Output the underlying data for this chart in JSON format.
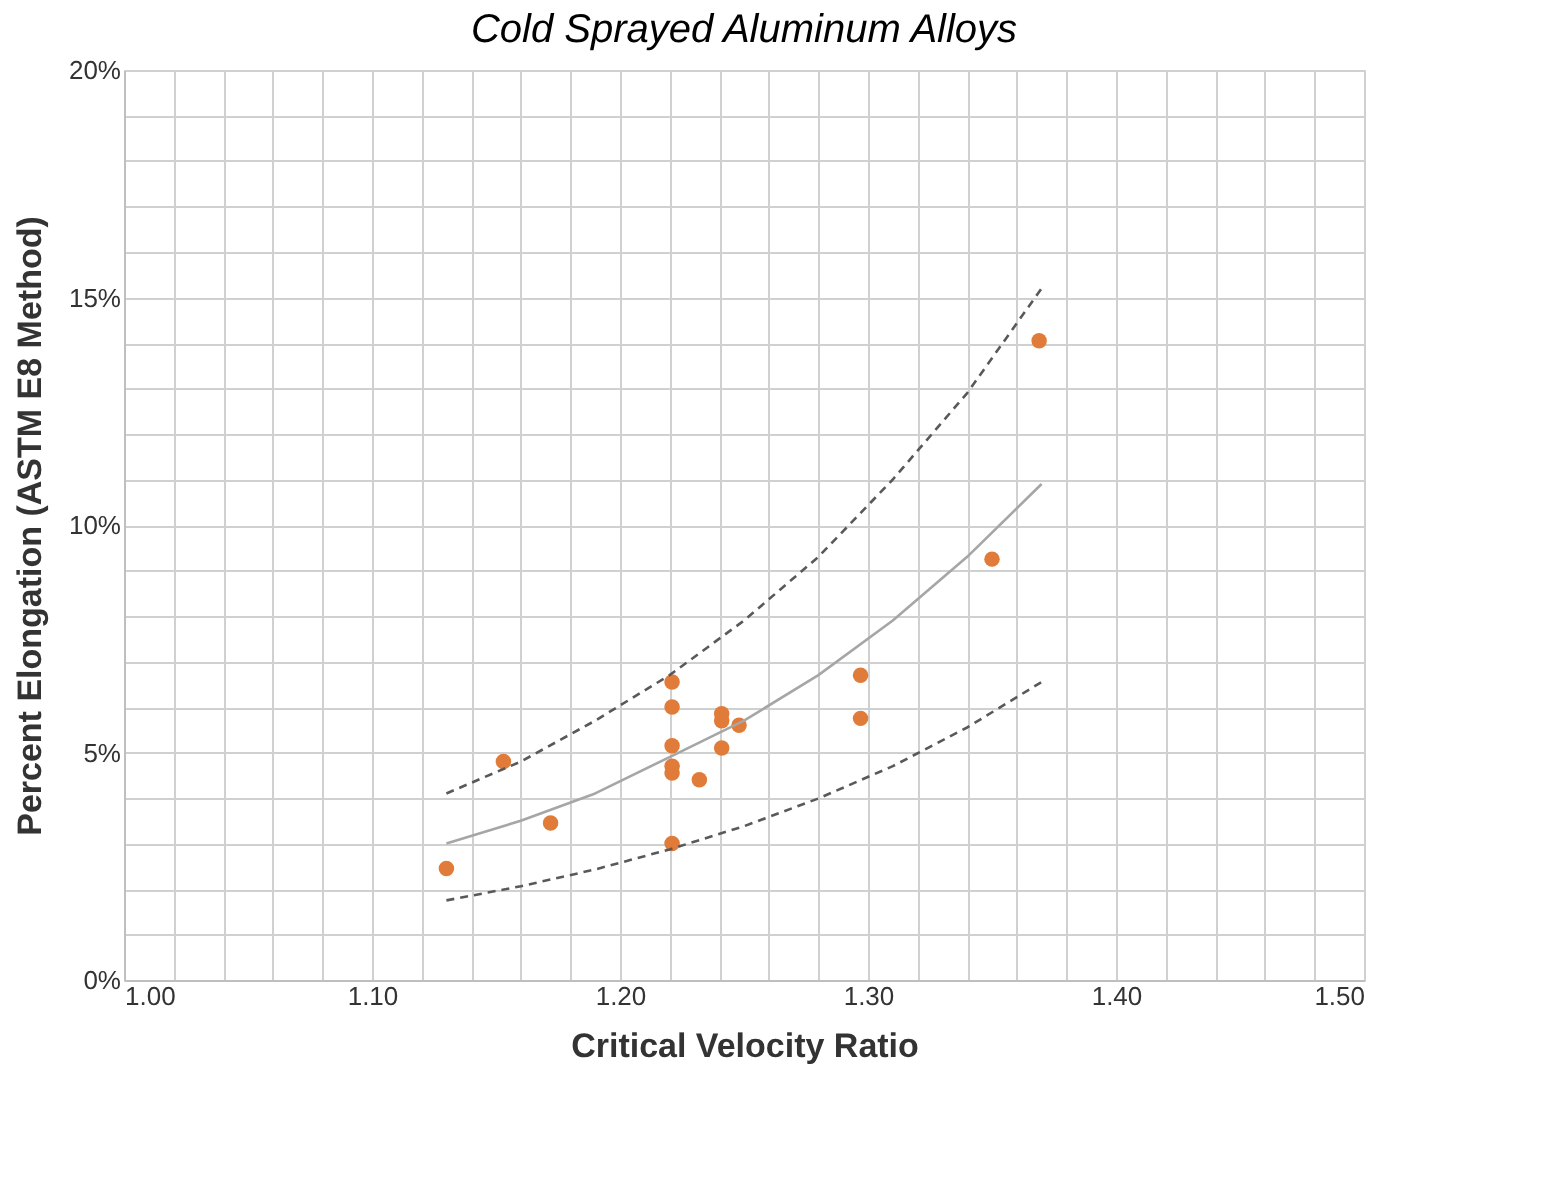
{
  "chart_data": {
    "type": "scatter",
    "title": "Cold Sprayed Aluminum Alloys",
    "xlabel": "Critical Velocity Ratio",
    "ylabel": "Percent Elongation (ASTM E8 Method)",
    "xlim": [
      1.0,
      1.5
    ],
    "ylim": [
      0,
      20
    ],
    "xticks": [
      {
        "value": 1.0,
        "label": "1.00"
      },
      {
        "value": 1.02,
        "label": null
      },
      {
        "value": 1.04,
        "label": null
      },
      {
        "value": 1.06,
        "label": null
      },
      {
        "value": 1.08,
        "label": null
      },
      {
        "value": 1.1,
        "label": "1.10"
      },
      {
        "value": 1.12,
        "label": null
      },
      {
        "value": 1.14,
        "label": null
      },
      {
        "value": 1.16,
        "label": null
      },
      {
        "value": 1.18,
        "label": null
      },
      {
        "value": 1.2,
        "label": "1.20"
      },
      {
        "value": 1.22,
        "label": null
      },
      {
        "value": 1.24,
        "label": null
      },
      {
        "value": 1.26,
        "label": null
      },
      {
        "value": 1.28,
        "label": null
      },
      {
        "value": 1.3,
        "label": "1.30"
      },
      {
        "value": 1.32,
        "label": null
      },
      {
        "value": 1.34,
        "label": null
      },
      {
        "value": 1.36,
        "label": null
      },
      {
        "value": 1.38,
        "label": null
      },
      {
        "value": 1.4,
        "label": "1.40"
      },
      {
        "value": 1.42,
        "label": null
      },
      {
        "value": 1.44,
        "label": null
      },
      {
        "value": 1.46,
        "label": null
      },
      {
        "value": 1.48,
        "label": null
      },
      {
        "value": 1.5,
        "label": "1.50"
      }
    ],
    "yticks": [
      {
        "value": 0,
        "label": "0%"
      },
      {
        "value": 1,
        "label": null
      },
      {
        "value": 2,
        "label": null
      },
      {
        "value": 3,
        "label": null
      },
      {
        "value": 4,
        "label": null
      },
      {
        "value": 5,
        "label": "5%"
      },
      {
        "value": 6,
        "label": null
      },
      {
        "value": 7,
        "label": null
      },
      {
        "value": 8,
        "label": null
      },
      {
        "value": 9,
        "label": null
      },
      {
        "value": 10,
        "label": "10%"
      },
      {
        "value": 11,
        "label": null
      },
      {
        "value": 12,
        "label": null
      },
      {
        "value": 13,
        "label": null
      },
      {
        "value": 14,
        "label": null
      },
      {
        "value": 15,
        "label": "15%"
      },
      {
        "value": 16,
        "label": null
      },
      {
        "value": 17,
        "label": null
      },
      {
        "value": 18,
        "label": null
      },
      {
        "value": 19,
        "label": null
      },
      {
        "value": 20,
        "label": "20%"
      }
    ],
    "grid": true,
    "marker": "circle",
    "series": [
      {
        "color": "#e07b39",
        "x": [
          1.13,
          1.153,
          1.172,
          1.221,
          1.221,
          1.221,
          1.221,
          1.221,
          1.221,
          1.232,
          1.241,
          1.241,
          1.241,
          1.248,
          1.297,
          1.297,
          1.35,
          1.369
        ],
        "values": [
          2.45,
          4.8,
          3.45,
          6.55,
          6.0,
          5.15,
          4.7,
          4.55,
          3.0,
          4.4,
          5.85,
          5.7,
          5.1,
          5.6,
          6.7,
          5.75,
          9.25,
          14.05
        ]
      },
      {
        "type": "line",
        "line_style": "solid",
        "marker": "none",
        "color": "#a6a6a6",
        "x": [
          1.13,
          1.16,
          1.19,
          1.22,
          1.25,
          1.28,
          1.31,
          1.34,
          1.37
        ],
        "values": [
          3.0,
          3.5,
          4.1,
          4.9,
          5.7,
          6.7,
          7.9,
          9.3,
          10.9
        ]
      },
      {
        "type": "line",
        "line_style": "dashed",
        "marker": "none",
        "color": "#595959",
        "x": [
          1.13,
          1.16,
          1.19,
          1.22,
          1.25,
          1.28,
          1.31,
          1.34,
          1.37
        ],
        "values": [
          4.1,
          4.8,
          5.7,
          6.7,
          7.9,
          9.3,
          11.0,
          12.9,
          15.2
        ]
      },
      {
        "type": "line",
        "line_style": "dashed",
        "marker": "none",
        "color": "#595959",
        "x": [
          1.13,
          1.16,
          1.19,
          1.22,
          1.25,
          1.28,
          1.31,
          1.34,
          1.37
        ],
        "values": [
          1.75,
          2.06,
          2.43,
          2.87,
          3.38,
          3.99,
          4.7,
          5.55,
          6.55
        ]
      }
    ]
  }
}
